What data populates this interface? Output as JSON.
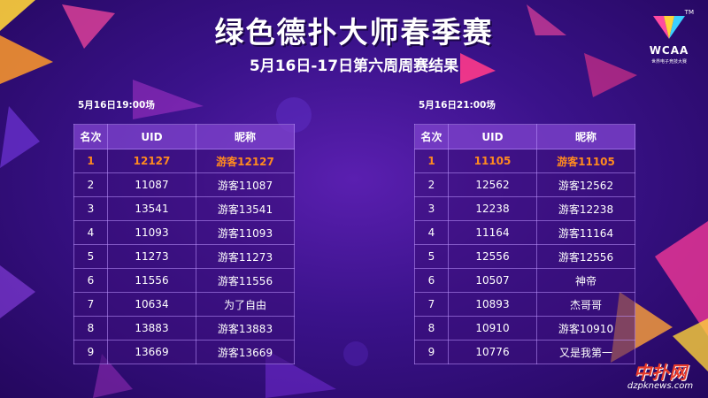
{
  "header": {
    "title": "绿色德扑大师春季赛",
    "subtitle": "5月16日-17日第六周周赛结果"
  },
  "logo": {
    "tm": "TM",
    "name": "WCAA",
    "subtitle": "世界电子竞技大赛"
  },
  "columns": {
    "rank": "名次",
    "uid": "UID",
    "nickname": "昵称"
  },
  "sessions": [
    {
      "label": "5月16日19:00场",
      "rows": [
        {
          "rank": "1",
          "uid": "12127",
          "nickname": "游客12127"
        },
        {
          "rank": "2",
          "uid": "11087",
          "nickname": "游客11087"
        },
        {
          "rank": "3",
          "uid": "13541",
          "nickname": "游客13541"
        },
        {
          "rank": "4",
          "uid": "11093",
          "nickname": "游客11093"
        },
        {
          "rank": "5",
          "uid": "11273",
          "nickname": "游客11273"
        },
        {
          "rank": "6",
          "uid": "11556",
          "nickname": "游客11556"
        },
        {
          "rank": "7",
          "uid": "10634",
          "nickname": "为了自由"
        },
        {
          "rank": "8",
          "uid": "13883",
          "nickname": "游客13883"
        },
        {
          "rank": "9",
          "uid": "13669",
          "nickname": "游客13669"
        }
      ]
    },
    {
      "label": "5月16日21:00场",
      "rows": [
        {
          "rank": "1",
          "uid": "11105",
          "nickname": "游客11105"
        },
        {
          "rank": "2",
          "uid": "12562",
          "nickname": "游客12562"
        },
        {
          "rank": "3",
          "uid": "12238",
          "nickname": "游客12238"
        },
        {
          "rank": "4",
          "uid": "11164",
          "nickname": "游客11164"
        },
        {
          "rank": "5",
          "uid": "12556",
          "nickname": "游客12556"
        },
        {
          "rank": "6",
          "uid": "10507",
          "nickname": "神帝"
        },
        {
          "rank": "7",
          "uid": "10893",
          "nickname": "杰哥哥"
        },
        {
          "rank": "8",
          "uid": "10910",
          "nickname": "游客10910"
        },
        {
          "rank": "9",
          "uid": "10776",
          "nickname": "又是我第一"
        }
      ]
    }
  ],
  "watermark": {
    "name": "中扑网",
    "url": "dzpknews.com"
  },
  "colors": {
    "highlight": "#ff8a1f",
    "background": "#3a128a"
  }
}
